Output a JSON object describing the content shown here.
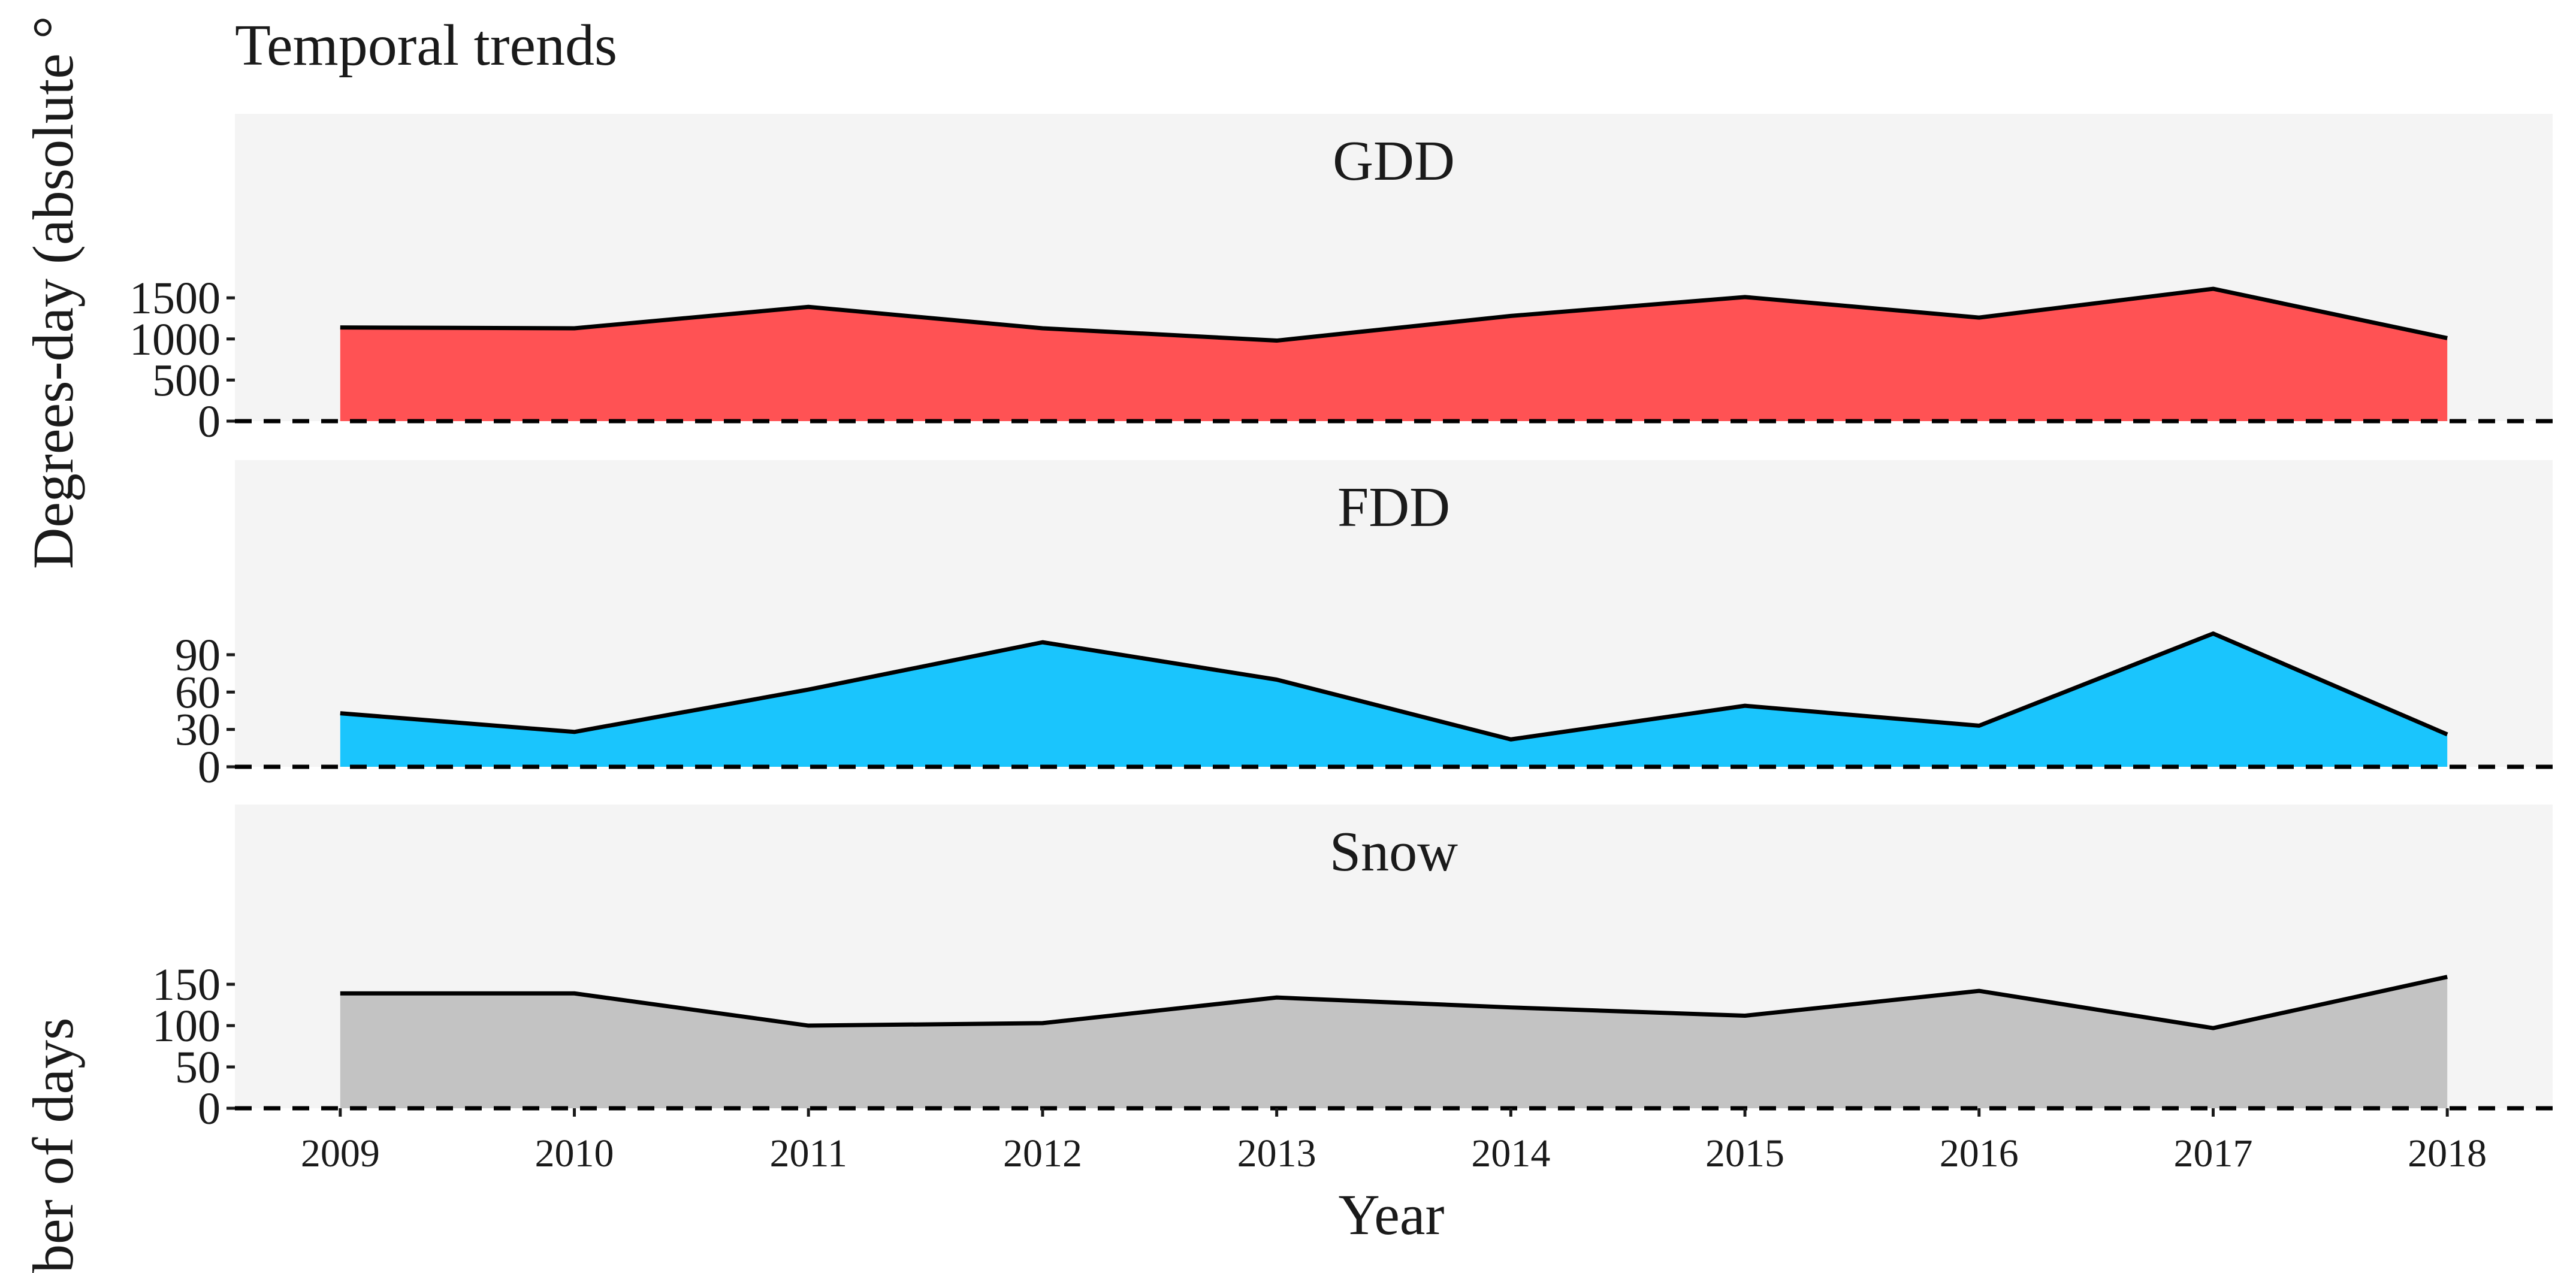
{
  "chart_data": {
    "type": "area",
    "title": "Temporal trends",
    "xlabel": "Year",
    "ylabel_top": "Degrees-day (absolute °",
    "ylabel_bottom": "ber of days",
    "years": [
      2009,
      2010,
      2011,
      2012,
      2013,
      2014,
      2015,
      2016,
      2017,
      2018
    ],
    "x_tick_labels": [
      "2009",
      "2010",
      "2011",
      "2012",
      "2013",
      "2014",
      "2015",
      "2016",
      "2017",
      "2018"
    ],
    "xlim": [
      2008.55,
      2018.45
    ],
    "grid": false,
    "legend": "none",
    "panels": [
      {
        "name": "GDD",
        "color": "#ff5254",
        "values": [
          1140,
          1130,
          1390,
          1130,
          980,
          1280,
          1510,
          1260,
          1610,
          1010
        ],
        "ylim": [
          0,
          2500
        ],
        "yticks": [
          0,
          500,
          1000,
          1500
        ],
        "ytick_labels": [
          "0",
          "500",
          "1000",
          "1500"
        ]
      },
      {
        "name": "FDD",
        "color": "#1ac5fd",
        "values": [
          43,
          28,
          62,
          100,
          70,
          22,
          49,
          33,
          107,
          26
        ],
        "ylim": [
          0,
          165
        ],
        "yticks": [
          0,
          30,
          60,
          90
        ],
        "ytick_labels": [
          "0",
          "30",
          "60",
          "90"
        ]
      },
      {
        "name": "Snow",
        "color": "#c3c3c3",
        "values": [
          139,
          139,
          100,
          103,
          134,
          122,
          112,
          142,
          97,
          159
        ],
        "ylim": [
          0,
          245
        ],
        "yticks": [
          0,
          50,
          100,
          150
        ],
        "ytick_labels": [
          "0",
          "50",
          "100",
          "150"
        ]
      }
    ]
  },
  "colors": {
    "panel_background": "#f4f4f4",
    "line": "#000000",
    "text": "#1a1a1a"
  }
}
